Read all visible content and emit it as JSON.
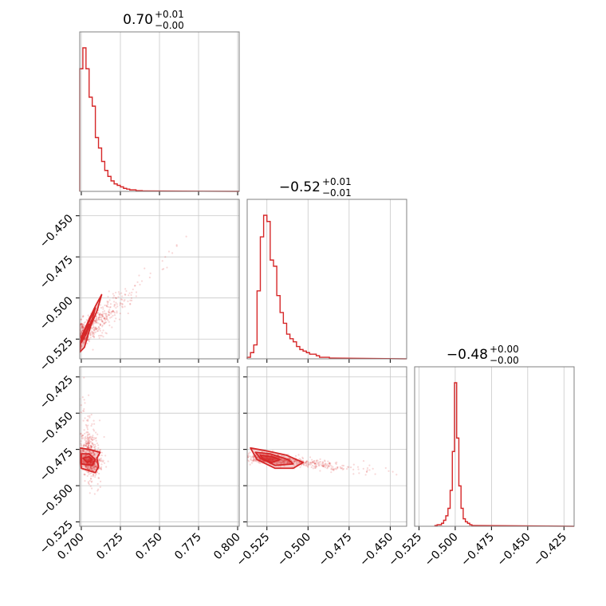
{
  "chart_data": {
    "type": "corner",
    "color": "#d62728",
    "parameters": [
      {
        "range": [
          0.699,
          0.801
        ],
        "ticks": [
          "0.700",
          "0.725",
          "0.750",
          "0.775",
          "0.800"
        ],
        "tick_values": [
          0.7,
          0.725,
          0.75,
          0.775,
          0.8
        ],
        "title": {
          "value": "0.70",
          "plus": "+0.01",
          "minus": "−0.00"
        }
      },
      {
        "range": [
          -0.537,
          -0.44
        ],
        "ticks": [
          "−0.525",
          "−0.500",
          "−0.475",
          "−0.450"
        ],
        "tick_values": [
          -0.525,
          -0.5,
          -0.475,
          -0.45
        ],
        "title": {
          "value": "−0.52",
          "plus": "+0.01",
          "minus": "−0.01"
        }
      },
      {
        "range": [
          -0.528,
          -0.418
        ],
        "ticks": [
          "−0.525",
          "−0.500",
          "−0.475",
          "−0.450",
          "−0.425"
        ],
        "tick_values": [
          -0.525,
          -0.5,
          -0.475,
          -0.45,
          -0.425
        ],
        "title": {
          "value": "−0.48",
          "plus": "+0.00",
          "minus": "−0.00"
        }
      }
    ],
    "histograms": [
      {
        "param": 0,
        "bin_start": 0.699,
        "bin_width": 0.002,
        "counts": [
          0.82,
          0.96,
          0.82,
          0.63,
          0.57,
          0.36,
          0.29,
          0.2,
          0.14,
          0.1,
          0.07,
          0.05,
          0.04,
          0.03,
          0.02,
          0.015,
          0.01,
          0.01,
          0.005,
          0.005,
          0.003
        ]
      },
      {
        "param": 1,
        "bin_start": -0.537,
        "bin_width": 0.002,
        "counts": [
          0.01,
          0.04,
          0.09,
          0.44,
          0.79,
          0.93,
          0.89,
          0.64,
          0.6,
          0.41,
          0.3,
          0.23,
          0.16,
          0.13,
          0.11,
          0.08,
          0.06,
          0.05,
          0.04,
          0.03,
          0.03,
          0.02,
          0.01,
          0.01,
          0.01,
          0.005
        ]
      },
      {
        "param": 2,
        "bin_start": -0.514,
        "bin_width": 0.0015,
        "counts": [
          0.005,
          0.01,
          0.01,
          0.02,
          0.04,
          0.07,
          0.12,
          0.24,
          0.5,
          0.96,
          0.59,
          0.27,
          0.12,
          0.05,
          0.03,
          0.02,
          0.01,
          0.005
        ]
      }
    ],
    "pair_plots": [
      {
        "x_param": 0,
        "y_param": 1,
        "center": [
          0.703,
          -0.52
        ],
        "axis": [
          0.85,
          0.52
        ],
        "spread": [
          0.006,
          0.008
        ],
        "contours": [
          [
            [
              0.699,
              -0.533
            ],
            [
              0.7,
              -0.524
            ],
            [
              0.705,
              -0.513
            ],
            [
              0.709,
              -0.505
            ],
            [
              0.713,
              -0.498
            ],
            [
              0.71,
              -0.508
            ],
            [
              0.706,
              -0.517
            ],
            [
              0.702,
              -0.53
            ],
            [
              0.699,
              -0.533
            ]
          ],
          [
            [
              0.7,
              -0.527
            ],
            [
              0.702,
              -0.52
            ],
            [
              0.706,
              -0.512
            ],
            [
              0.709,
              -0.506
            ],
            [
              0.707,
              -0.513
            ],
            [
              0.703,
              -0.522
            ],
            [
              0.7,
              -0.527
            ]
          ],
          [
            [
              0.7,
              -0.524
            ],
            [
              0.703,
              -0.518
            ],
            [
              0.705,
              -0.516
            ],
            [
              0.703,
              -0.521
            ],
            [
              0.7,
              -0.524
            ]
          ]
        ]
      },
      {
        "x_param": 0,
        "y_param": 2,
        "center": [
          0.706,
          -0.482
        ],
        "axis": [
          -0.1,
          1.0
        ],
        "spread": [
          0.007,
          0.005
        ],
        "contours": [
          [
            [
              0.699,
              -0.474
            ],
            [
              0.705,
              -0.475
            ],
            [
              0.712,
              -0.477
            ],
            [
              0.71,
              -0.481
            ],
            [
              0.711,
              -0.487
            ],
            [
              0.709,
              -0.491
            ],
            [
              0.7,
              -0.488
            ],
            [
              0.699,
              -0.474
            ]
          ],
          [
            [
              0.7,
              -0.478
            ],
            [
              0.705,
              -0.478
            ],
            [
              0.709,
              -0.482
            ],
            [
              0.707,
              -0.486
            ],
            [
              0.7,
              -0.485
            ],
            [
              0.7,
              -0.478
            ]
          ],
          [
            [
              0.701,
              -0.481
            ],
            [
              0.705,
              -0.48
            ],
            [
              0.707,
              -0.482
            ],
            [
              0.704,
              -0.484
            ],
            [
              0.701,
              -0.481
            ]
          ]
        ]
      },
      {
        "x_param": 1,
        "y_param": 2,
        "center": [
          -0.52,
          -0.482
        ],
        "axis": [
          1.0,
          -0.42
        ],
        "spread": [
          0.011,
          0.0035
        ],
        "contours": [
          [
            [
              -0.535,
              -0.474
            ],
            [
              -0.525,
              -0.476
            ],
            [
              -0.513,
              -0.479
            ],
            [
              -0.503,
              -0.484
            ],
            [
              -0.509,
              -0.488
            ],
            [
              -0.52,
              -0.488
            ],
            [
              -0.531,
              -0.482
            ],
            [
              -0.535,
              -0.474
            ]
          ],
          [
            [
              -0.532,
              -0.477
            ],
            [
              -0.523,
              -0.478
            ],
            [
              -0.512,
              -0.482
            ],
            [
              -0.509,
              -0.485
            ],
            [
              -0.52,
              -0.486
            ],
            [
              -0.529,
              -0.481
            ],
            [
              -0.532,
              -0.477
            ]
          ],
          [
            [
              -0.529,
              -0.479
            ],
            [
              -0.522,
              -0.48
            ],
            [
              -0.517,
              -0.482
            ],
            [
              -0.522,
              -0.484
            ],
            [
              -0.527,
              -0.482
            ],
            [
              -0.529,
              -0.479
            ]
          ]
        ]
      }
    ],
    "grid": true
  }
}
